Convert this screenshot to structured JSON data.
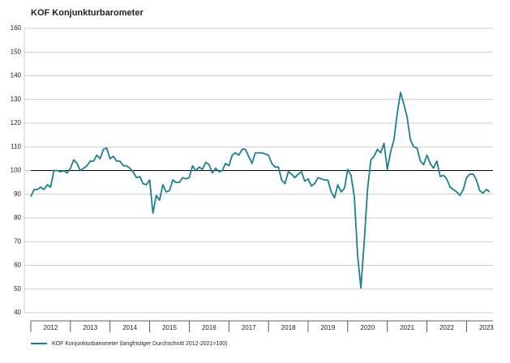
{
  "chart_data": {
    "type": "line",
    "title": "KOF Konjunkturbarometer",
    "categories": [
      null,
      null,
      null,
      null,
      null,
      null,
      "2012",
      null,
      null,
      null,
      null,
      null,
      null,
      null,
      null,
      null,
      null,
      null,
      "2013",
      null,
      null,
      null,
      null,
      null,
      null,
      null,
      null,
      null,
      null,
      null,
      "2014",
      null,
      null,
      null,
      null,
      null,
      null,
      null,
      null,
      null,
      null,
      null,
      "2015",
      null,
      null,
      null,
      null,
      null,
      null,
      null,
      null,
      null,
      null,
      null,
      "2016",
      null,
      null,
      null,
      null,
      null,
      null,
      null,
      null,
      null,
      null,
      null,
      "2017",
      null,
      null,
      null,
      null,
      null,
      null,
      null,
      null,
      null,
      null,
      null,
      "2018",
      null,
      null,
      null,
      null,
      null,
      null,
      null,
      null,
      null,
      null,
      null,
      "2019",
      null,
      null,
      null,
      null,
      null,
      null,
      null,
      null,
      null,
      null,
      null,
      "2020",
      null,
      null,
      null,
      null,
      null,
      null,
      null,
      null,
      null,
      null,
      null,
      "2021",
      null,
      null,
      null,
      null,
      null,
      null,
      null,
      null,
      null,
      null,
      null,
      "2022",
      null,
      null,
      null,
      null,
      null,
      null,
      null,
      null,
      null,
      null,
      null,
      "2023",
      null
    ],
    "series": [
      {
        "name": "KOF Konjunkturbarometer (langfristiger Durchschnitt 2012-2021=100)",
        "color": "#1b8090",
        "values": [
          89,
          92,
          92,
          93,
          92,
          94,
          93,
          100,
          100,
          99.5,
          100,
          99,
          101,
          104.5,
          103,
          100,
          101,
          102,
          104,
          104,
          106.5,
          105,
          109,
          109.5,
          105,
          106,
          104,
          104,
          102,
          102,
          101,
          99.5,
          97,
          97.5,
          94.5,
          94,
          96,
          82,
          89.5,
          87.5,
          94,
          91,
          91.5,
          96,
          95,
          95,
          97,
          96.5,
          97,
          102,
          100,
          101.5,
          100.5,
          103.5,
          102.5,
          99,
          101,
          99.5,
          100,
          103,
          102,
          106.5,
          107.5,
          106.5,
          109,
          109,
          106,
          103,
          107.5,
          107.5,
          107.5,
          107,
          106.5,
          103,
          101.5,
          101.5,
          96,
          94.5,
          99.5,
          98.5,
          97,
          98.5,
          99.5,
          95.5,
          96.5,
          93.5,
          94.5,
          97,
          96.5,
          96,
          96,
          91,
          88.5,
          94,
          91,
          92.5,
          100.5,
          98,
          89,
          64,
          50.5,
          70,
          92,
          104.5,
          106,
          109,
          107.5,
          111.5,
          100.5,
          108,
          113,
          124,
          133,
          128,
          122.5,
          113,
          110,
          109.5,
          104,
          102.5,
          106.5,
          103,
          101,
          104,
          97.5,
          98,
          96.5,
          93,
          92,
          91,
          89.5,
          92,
          97,
          98.5,
          98.5,
          96,
          91.5,
          90.5,
          92,
          91
        ]
      }
    ],
    "ylim": [
      40,
      160
    ],
    "yticks": [
      40,
      50,
      60,
      70,
      80,
      90,
      100,
      110,
      120,
      130,
      140,
      150,
      160
    ],
    "reference_line": 100,
    "grid": true
  }
}
